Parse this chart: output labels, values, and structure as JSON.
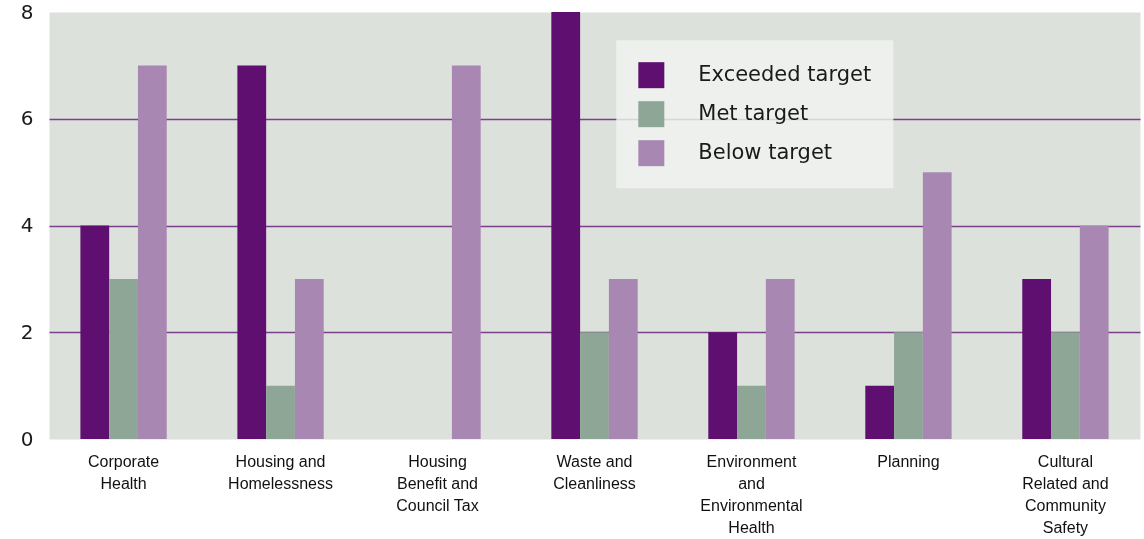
{
  "chart_data": {
    "type": "bar",
    "categories": [
      "Corporate Health",
      "Housing and Homelessness",
      "Housing Benefit and Council Tax",
      "Waste and Cleanliness",
      "Environment and Environmental Health",
      "Planning",
      "Cultural Related and Community Safety"
    ],
    "series": [
      {
        "name": "Exceeded target",
        "color": "#5e0f70",
        "values": [
          4,
          7,
          0,
          8,
          2,
          1,
          3
        ]
      },
      {
        "name": "Met target",
        "color": "#8da696",
        "values": [
          3,
          1,
          0,
          2,
          1,
          2,
          2
        ]
      },
      {
        "name": "Below target",
        "color": "#a987b3",
        "values": [
          7,
          3,
          7,
          3,
          3,
          5,
          4
        ]
      }
    ],
    "ylim": [
      0,
      8
    ],
    "yticks": [
      0,
      2,
      4,
      6,
      8
    ],
    "grid": "y",
    "legend": "top right"
  }
}
